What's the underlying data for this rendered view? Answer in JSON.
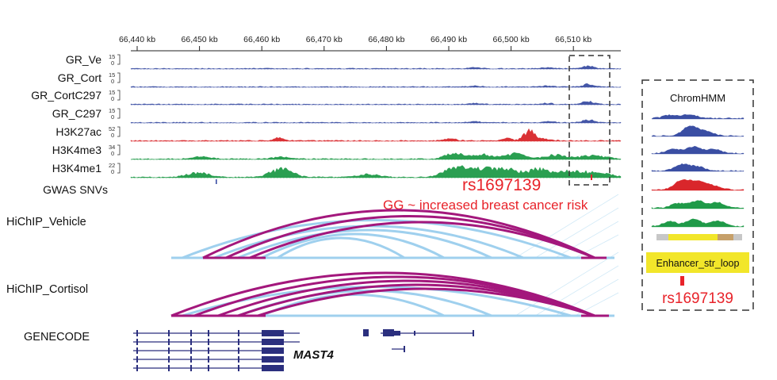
{
  "coords": {
    "unit": "kb",
    "ticks": [
      {
        "label": "66,440 kb",
        "pos": 66440
      },
      {
        "label": "66,450 kb",
        "pos": 66450
      },
      {
        "label": "66,460 kb",
        "pos": 66460
      },
      {
        "label": "66,470 kb",
        "pos": 66470
      },
      {
        "label": "66,480 kb",
        "pos": 66480
      },
      {
        "label": "66,490 kb",
        "pos": 66490
      },
      {
        "label": "66,500 kb",
        "pos": 66500
      },
      {
        "label": "66,510 kb",
        "pos": 66510
      }
    ]
  },
  "tracks": [
    {
      "label": "GR_Ve",
      "max": "15",
      "min": "0",
      "color": "#3a4ea3",
      "style": "sparse"
    },
    {
      "label": "GR_Cort",
      "max": "15",
      "min": "0",
      "color": "#3a4ea3",
      "style": "sparse"
    },
    {
      "label": "GR_CortC297",
      "max": "15",
      "min": "0",
      "color": "#3a4ea3",
      "style": "sparse"
    },
    {
      "label": "GR_C297",
      "max": "15",
      "min": "0",
      "color": "#3a4ea3",
      "style": "sparse"
    },
    {
      "label": "H3K27ac",
      "max": "52",
      "min": "0",
      "color": "#d9262b",
      "style": "k27"
    },
    {
      "label": "H3K4me3",
      "max": "34",
      "min": "0",
      "color": "#1f9a48",
      "style": "k4me3"
    },
    {
      "label": "H3K4me1",
      "max": "22",
      "min": "0",
      "color": "#1f9a48",
      "style": "k4me1"
    }
  ],
  "gwas": {
    "label": "GWAS SNVs"
  },
  "callout": {
    "snp": "rs1697139",
    "effect": "GG ~ increased breast cancer risk"
  },
  "hichip": [
    {
      "label": "HiChIP_Vehicle"
    },
    {
      "label": "HiChIP_Cortisol"
    }
  ],
  "genecode": {
    "label": "GENECODE",
    "gene": "MAST4"
  },
  "chromhmm": {
    "title": "ChromHMM",
    "state_label": "Enhancer_str_loop",
    "snp": "rs1697139"
  },
  "colors": {
    "gr": "#3a4ea3",
    "k27ac": "#d9262b",
    "k4": "#1f9a48",
    "loop_light": "#9fd0ee",
    "loop_dark": "#a3177c",
    "gene": "#2b2f7e",
    "highlight": "#e8232a",
    "enhancer_bg": "#f2e62a"
  }
}
